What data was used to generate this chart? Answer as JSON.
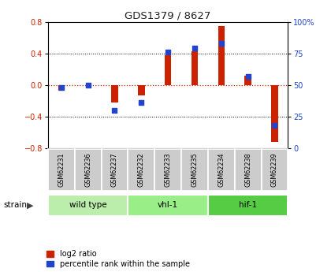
{
  "title": "GDS1379 / 8627",
  "samples": [
    "GSM62231",
    "GSM62236",
    "GSM62237",
    "GSM62232",
    "GSM62233",
    "GSM62235",
    "GSM62234",
    "GSM62238",
    "GSM62239"
  ],
  "log2_ratio": [
    -0.07,
    0.0,
    -0.22,
    -0.13,
    0.38,
    0.43,
    0.75,
    0.12,
    -0.72
  ],
  "pct_rank": [
    48,
    50,
    30,
    36,
    76,
    79,
    83,
    57,
    18
  ],
  "groups": [
    {
      "label": "wild type",
      "indices": [
        0,
        1,
        2
      ],
      "color": "#bbeeaa"
    },
    {
      "label": "vhl-1",
      "indices": [
        3,
        4,
        5
      ],
      "color": "#99ee88"
    },
    {
      "label": "hif-1",
      "indices": [
        6,
        7,
        8
      ],
      "color": "#55cc44"
    }
  ],
  "ylim": [
    -0.8,
    0.8
  ],
  "y2lim": [
    0,
    100
  ],
  "yticks_left": [
    -0.8,
    -0.4,
    0.0,
    0.4,
    0.8
  ],
  "yticks_right": [
    0,
    25,
    50,
    75,
    100
  ],
  "bar_color": "#cc2200",
  "dot_color": "#2244cc",
  "bg_color": "#ffffff",
  "plot_bg": "#ffffff",
  "zero_line_color": "#cc2200",
  "sample_bg": "#cccccc",
  "bar_width": 0.25,
  "dot_size": 22
}
